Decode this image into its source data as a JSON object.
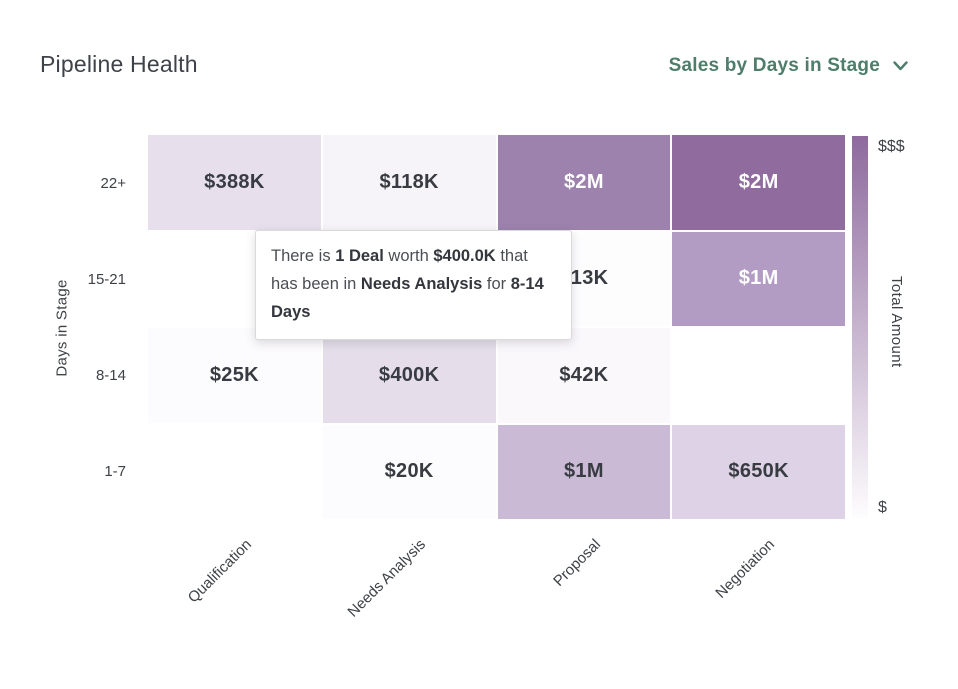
{
  "header": {
    "title": "Pipeline Health",
    "view_selector": {
      "label": "Sales by Days in Stage",
      "icon": "chevron-down",
      "accent_color": "#4e7e6b"
    }
  },
  "chart_data": {
    "type": "heatmap",
    "title": "Pipeline Health",
    "x_categories": [
      "Qualification",
      "Needs Analysis",
      "Proposal",
      "Negotiation"
    ],
    "y_categories": [
      "22+",
      "15-21",
      "8-14",
      "1-7"
    ],
    "xlabel": "",
    "ylabel": "Days in Stage",
    "legend_position": "right",
    "colorbar": {
      "label": "Total Amount",
      "top_tick": "$$$",
      "bottom_tick": "$",
      "color_high": "#8e6a9e",
      "color_low": "#fefdfe"
    },
    "cells": [
      [
        {
          "label": "$388K",
          "value": 388000,
          "bg": "#e7e0ec"
        },
        {
          "label": "$118K",
          "value": 118000,
          "bg": "#f7f4f9"
        },
        {
          "label": "$2M",
          "value": 2000000,
          "bg": "#9c82ad"
        },
        {
          "label": "$2M",
          "value": 2000000,
          "bg": "#8f6b9e"
        }
      ],
      [
        {
          "label": "",
          "value": null,
          "bg": "#ffffff"
        },
        {
          "label": "",
          "value": null,
          "bg": "#ffffff"
        },
        {
          "label": "$13K",
          "value": 13000,
          "bg": "#fdfdfe"
        },
        {
          "label": "$1M",
          "value": 1000000,
          "bg": "#b29cc4"
        }
      ],
      [
        {
          "label": "$25K",
          "value": 25000,
          "bg": "#fcfbfd"
        },
        {
          "label": "$400K",
          "value": 400000,
          "bg": "#e5deea"
        },
        {
          "label": "$42K",
          "value": 42000,
          "bg": "#faf8fb"
        },
        {
          "label": "",
          "value": null,
          "bg": "#ffffff"
        }
      ],
      [
        {
          "label": "",
          "value": null,
          "bg": "#ffffff"
        },
        {
          "label": "$20K",
          "value": 20000,
          "bg": "#fcfbfd"
        },
        {
          "label": "$1M",
          "value": 1000000,
          "bg": "#cabad5"
        },
        {
          "label": "$650K",
          "value": 650000,
          "bg": "#ded3e6"
        }
      ]
    ]
  },
  "tooltip": {
    "full_text": "There is 1 Deal worth $400.0K that has been in Needs Analysis for 8-14 Days",
    "segments": [
      {
        "text": "There is ",
        "bold": false
      },
      {
        "text": "1 Deal",
        "bold": true
      },
      {
        "text": " worth ",
        "bold": false
      },
      {
        "text": "$400.0K",
        "bold": true
      },
      {
        "text": " that has been in ",
        "bold": false
      },
      {
        "text": "Needs Analysis",
        "bold": true
      },
      {
        "text": " for ",
        "bold": false
      },
      {
        "text": "8-14 Days",
        "bold": true
      }
    ]
  }
}
